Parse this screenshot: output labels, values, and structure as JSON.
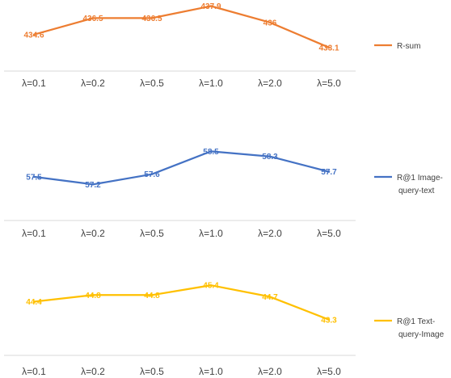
{
  "chart_data": [
    {
      "type": "line",
      "categories": [
        "λ=0.1",
        "λ=0.2",
        "λ=0.5",
        "λ=1.0",
        "λ=2.0",
        "λ=5.0"
      ],
      "series": [
        {
          "name": "R-sum",
          "values": [
            434.6,
            436.5,
            436.5,
            437.9,
            436,
            433.1
          ],
          "labels": [
            "434.6",
            "436.5",
            "436.5",
            "437.9",
            "436",
            "433.1"
          ],
          "color": "#ED7D31"
        }
      ],
      "legend": {
        "lines": [
          "R-sum"
        ],
        "position": "right"
      },
      "ylim": [
        432.8,
        438.6
      ],
      "grid": false
    },
    {
      "type": "line",
      "categories": [
        "λ=0.1",
        "λ=0.2",
        "λ=0.5",
        "λ=1.0",
        "λ=2.0",
        "λ=5.0"
      ],
      "series": [
        {
          "name": "R@1 Image-query-text",
          "values": [
            57.5,
            57.2,
            57.6,
            58.5,
            58.3,
            57.7
          ],
          "labels": [
            "57.5",
            "57.2",
            "57.6",
            "58.5",
            "58.3",
            "57.7"
          ],
          "color": "#4472C4"
        }
      ],
      "legend": {
        "lines": [
          "R@1 Image-",
          "query-text"
        ],
        "position": "right"
      },
      "ylim": [
        56.7,
        58.8
      ],
      "grid": false
    },
    {
      "type": "line",
      "categories": [
        "λ=0.1",
        "λ=0.2",
        "λ=0.5",
        "λ=1.0",
        "λ=2.0",
        "λ=5.0"
      ],
      "series": [
        {
          "name": "R@1 Text-query-Image",
          "values": [
            44.4,
            44.8,
            44.8,
            45.4,
            44.7,
            43.3
          ],
          "labels": [
            "44.4",
            "44.8",
            "44.8",
            "45.4",
            "44.7",
            "43.3"
          ],
          "color": "#FFC000"
        }
      ],
      "legend": {
        "lines": [
          "R@1 Text-",
          "query-Image"
        ],
        "position": "right"
      },
      "ylim": [
        42.6,
        45.9
      ],
      "grid": false
    }
  ]
}
